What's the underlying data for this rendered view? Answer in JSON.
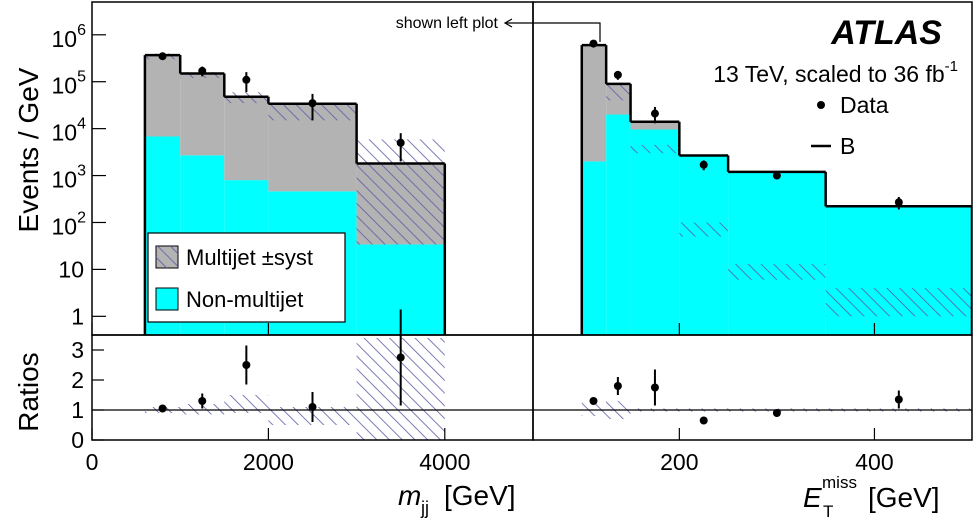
{
  "chart_data": [
    {
      "type": "histogram",
      "log_y": true,
      "ylabel": "Events / GeV",
      "xlabel": {
        "symbol": "m",
        "sub": "jj",
        "unit": "[GeV]"
      },
      "xlim": [
        0,
        5000
      ],
      "xticks": [
        0,
        2000,
        4000
      ],
      "ylim": [
        0.4,
        5000000
      ],
      "yticks": [
        {
          "value": 1000000,
          "label": "10",
          "sup": "6"
        },
        {
          "value": 100000,
          "label": "10",
          "sup": "5"
        },
        {
          "value": 10000,
          "label": "10",
          "sup": "4"
        },
        {
          "value": 1000,
          "label": "10",
          "sup": "3"
        },
        {
          "value": 100,
          "label": "10",
          "sup": "2"
        },
        10,
        1
      ],
      "bins": [
        600,
        1000,
        1500,
        2000,
        3000,
        4000
      ],
      "series": [
        {
          "name": "Non-multijet",
          "color": "#00ffff",
          "values": [
            6800,
            2700,
            800,
            460,
            34
          ]
        },
        {
          "name": "Multijet ±syst",
          "color": "#b3b3b3",
          "values": [
            363000,
            147000,
            47000,
            33500,
            1770
          ]
        }
      ],
      "band": {
        "color": "#5b5ba5",
        "low": [
          300000,
          120000,
          35000,
          15000,
          34
        ],
        "high": [
          400000,
          160000,
          60000,
          35000,
          5900
        ]
      },
      "data": {
        "x": [
          800,
          1250,
          1750,
          2500,
          3500
        ],
        "y": [
          350000,
          170000,
          110000,
          35000,
          5000
        ],
        "yerr": [
          30000,
          40000,
          50000,
          20000,
          3000
        ]
      },
      "ratio": {
        "ylabel": "Ratios",
        "ylim": [
          0,
          3.5
        ],
        "yticks": [
          0,
          1,
          2,
          3
        ],
        "reference": 1,
        "values": [
          1.05,
          1.3,
          2.5,
          1.1,
          2.75
        ],
        "yerr": [
          0.1,
          0.25,
          0.65,
          0.5,
          1.6
        ],
        "band_low": [
          0.9,
          0.85,
          0.9,
          0.5,
          0
        ],
        "band_high": [
          1.1,
          1.2,
          1.5,
          1.1,
          3.4
        ]
      }
    },
    {
      "type": "histogram",
      "log_y": true,
      "title": "ATLAS",
      "subtitle": "13 TeV, scaled to 36 fb",
      "subtitle_sup": "-1",
      "annotation": "shown left plot",
      "legend_entries": [
        "Data",
        "B"
      ],
      "xlabel": {
        "symbol": "E",
        "sub": "T",
        "sup": "miss",
        "unit": "[GeV]"
      },
      "xlim": [
        50,
        500
      ],
      "xticks": [
        200,
        400
      ],
      "ylim": [
        0.4,
        5000000
      ],
      "bins": [
        100,
        125,
        150,
        200,
        250,
        350,
        500
      ],
      "series": [
        {
          "name": "Non-multijet",
          "color": "#00ffff",
          "values": [
            2000,
            20000,
            9600,
            2600,
            1190,
            220
          ]
        },
        {
          "name": "Multijet",
          "color": "#b3b3b3",
          "values": [
            600000,
            70000,
            4400,
            80,
            11,
            1.3
          ]
        }
      ],
      "band": {
        "color": "#5b5ba5",
        "low": [
          null,
          40000,
          3000,
          50,
          6,
          1
        ],
        "high": [
          null,
          90000,
          4500,
          100,
          13,
          4
        ]
      },
      "data": {
        "x": [
          112,
          137,
          175,
          225,
          300,
          425
        ],
        "y": [
          650000,
          140000,
          21000,
          1700,
          1000,
          270
        ],
        "yerr": [
          50000,
          30000,
          8000,
          400,
          150,
          80
        ]
      },
      "ratio": {
        "ylim": [
          0,
          3.5
        ],
        "reference": 1,
        "values": [
          1.3,
          1.8,
          1.75,
          0.65,
          0.9,
          1.35
        ],
        "yerr": [
          0.08,
          0.3,
          0.6,
          0.1,
          0.12,
          0.3
        ],
        "band_low": [
          0.8,
          0.7,
          0.95,
          0.95,
          0.95,
          0.95
        ],
        "band_high": [
          1.25,
          1.3,
          1.05,
          1.05,
          1.05,
          1.05
        ]
      }
    }
  ]
}
